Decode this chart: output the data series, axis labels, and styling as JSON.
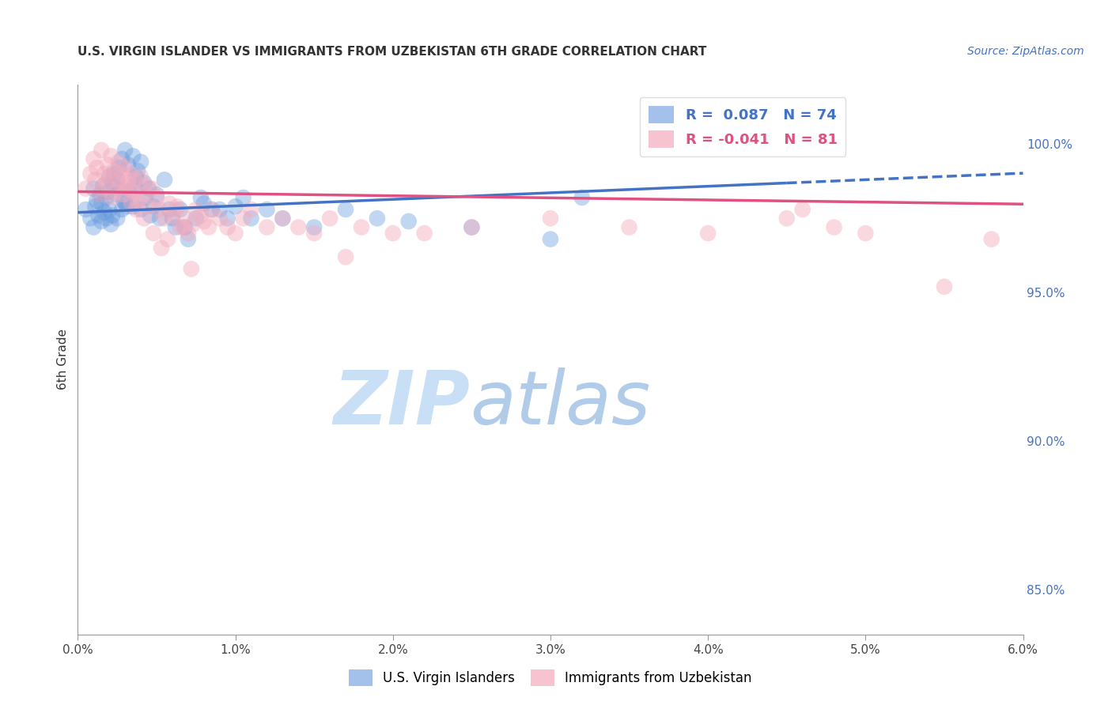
{
  "title": "U.S. VIRGIN ISLANDER VS IMMIGRANTS FROM UZBEKISTAN 6TH GRADE CORRELATION CHART",
  "source": "Source: ZipAtlas.com",
  "xlabel_ticks": [
    "0.0%",
    "1.0%",
    "2.0%",
    "3.0%",
    "4.0%",
    "5.0%",
    "6.0%"
  ],
  "xlabel_vals": [
    0.0,
    1.0,
    2.0,
    3.0,
    4.0,
    5.0,
    6.0
  ],
  "ylabel_ticks": [
    "85.0%",
    "90.0%",
    "95.0%",
    "100.0%"
  ],
  "ylabel_vals": [
    85.0,
    90.0,
    95.0,
    100.0
  ],
  "xlim": [
    0.0,
    6.0
  ],
  "ylim": [
    83.5,
    102.0
  ],
  "ylabel_label": "6th Grade",
  "blue_line_color": "#4472c4",
  "pink_line_color": "#e05080",
  "blue_scatter_color": "#6699dd",
  "pink_scatter_color": "#f4aabc",
  "watermark_zip": "ZIP",
  "watermark_atlas": "atlas",
  "watermark_color": "#ddeeff",
  "background_color": "#ffffff",
  "grid_color": "#cccccc",
  "blue_intercept": 97.7,
  "blue_slope": 0.22,
  "pink_intercept": 98.4,
  "pink_slope": -0.07,
  "blue_dash_start": 4.5,
  "blue_N": 74,
  "pink_N": 81,
  "blue_R": "0.087",
  "pink_R": "-0.041",
  "blue_scatter_x": [
    0.05,
    0.08,
    0.1,
    0.1,
    0.11,
    0.12,
    0.13,
    0.14,
    0.15,
    0.15,
    0.16,
    0.17,
    0.18,
    0.18,
    0.19,
    0.2,
    0.2,
    0.21,
    0.22,
    0.22,
    0.23,
    0.24,
    0.25,
    0.25,
    0.26,
    0.27,
    0.28,
    0.28,
    0.3,
    0.3,
    0.32,
    0.33,
    0.35,
    0.35,
    0.37,
    0.38,
    0.4,
    0.4,
    0.42,
    0.43,
    0.45,
    0.48,
    0.5,
    0.52,
    0.55,
    0.58,
    0.6,
    0.62,
    0.65,
    0.68,
    0.7,
    0.75,
    0.78,
    0.8,
    0.85,
    0.9,
    0.95,
    1.0,
    1.05,
    1.1,
    1.2,
    1.3,
    1.5,
    1.7,
    1.9,
    2.1,
    2.5,
    3.0,
    3.2,
    4.8,
    0.29,
    0.31,
    0.36,
    0.46
  ],
  "blue_scatter_y": [
    97.8,
    97.5,
    98.5,
    97.2,
    97.9,
    98.1,
    97.6,
    98.3,
    98.0,
    97.4,
    98.6,
    97.7,
    98.2,
    97.5,
    98.4,
    97.8,
    98.9,
    97.3,
    98.7,
    97.6,
    99.0,
    98.3,
    98.8,
    97.5,
    99.2,
    98.5,
    99.5,
    97.8,
    99.8,
    98.0,
    99.3,
    98.4,
    99.6,
    97.9,
    98.9,
    99.1,
    99.4,
    97.8,
    98.7,
    98.2,
    98.5,
    97.9,
    98.3,
    97.5,
    98.8,
    97.8,
    97.5,
    97.2,
    97.8,
    97.2,
    96.8,
    97.5,
    98.2,
    98.0,
    97.8,
    97.8,
    97.5,
    97.9,
    98.2,
    97.5,
    97.8,
    97.5,
    97.2,
    97.8,
    97.5,
    97.4,
    97.2,
    96.8,
    98.2,
    100.2,
    98.1,
    97.9,
    98.6,
    97.6
  ],
  "pink_scatter_x": [
    0.05,
    0.08,
    0.1,
    0.11,
    0.12,
    0.14,
    0.15,
    0.16,
    0.17,
    0.18,
    0.19,
    0.2,
    0.21,
    0.22,
    0.23,
    0.24,
    0.25,
    0.26,
    0.27,
    0.28,
    0.29,
    0.3,
    0.31,
    0.32,
    0.33,
    0.35,
    0.36,
    0.38,
    0.4,
    0.41,
    0.43,
    0.45,
    0.47,
    0.5,
    0.52,
    0.55,
    0.58,
    0.6,
    0.63,
    0.65,
    0.68,
    0.7,
    0.73,
    0.75,
    0.78,
    0.8,
    0.83,
    0.85,
    0.9,
    0.95,
    1.0,
    1.05,
    1.1,
    1.2,
    1.3,
    1.4,
    1.5,
    1.6,
    1.8,
    2.0,
    2.5,
    3.0,
    3.5,
    4.0,
    4.5,
    4.6,
    4.8,
    5.0,
    5.5,
    5.8,
    0.34,
    0.37,
    0.42,
    0.48,
    0.53,
    0.57,
    0.62,
    0.67,
    0.72,
    2.2,
    1.7
  ],
  "pink_scatter_y": [
    98.5,
    99.0,
    99.5,
    98.8,
    99.2,
    98.3,
    99.8,
    98.5,
    99.0,
    98.7,
    99.3,
    98.9,
    99.6,
    98.2,
    99.1,
    98.4,
    98.8,
    99.4,
    98.6,
    99.0,
    98.3,
    99.2,
    98.5,
    98.7,
    99.0,
    98.4,
    98.8,
    98.1,
    98.9,
    98.3,
    98.6,
    97.9,
    98.5,
    98.2,
    97.8,
    97.5,
    98.0,
    97.6,
    97.9,
    97.2,
    97.5,
    97.0,
    97.3,
    97.8,
    97.6,
    97.4,
    97.2,
    97.8,
    97.5,
    97.2,
    97.0,
    97.5,
    97.8,
    97.2,
    97.5,
    97.2,
    97.0,
    97.5,
    97.2,
    97.0,
    97.2,
    97.5,
    97.2,
    97.0,
    97.5,
    97.8,
    97.2,
    97.0,
    95.2,
    96.8,
    98.0,
    97.8,
    97.5,
    97.0,
    96.5,
    96.8,
    97.8,
    97.2,
    95.8,
    97.0,
    96.2
  ]
}
